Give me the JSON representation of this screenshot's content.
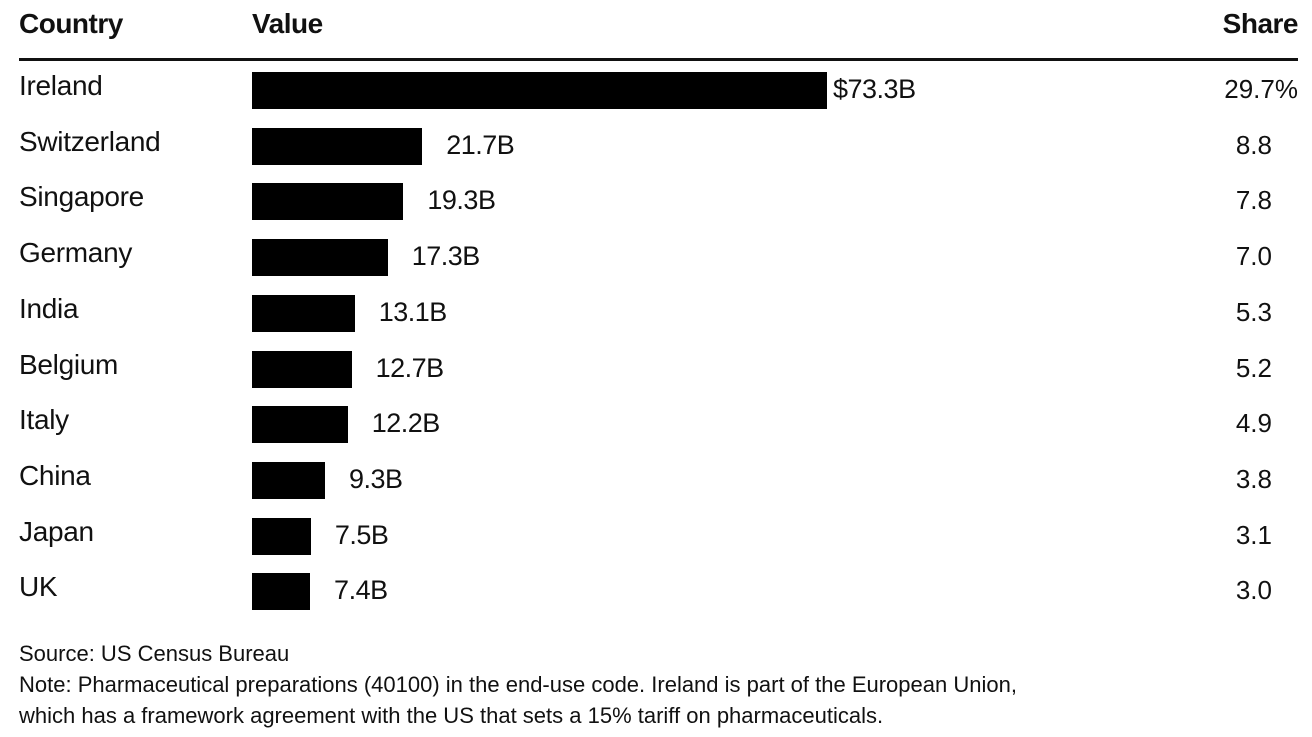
{
  "chart_data": {
    "type": "bar",
    "orientation": "horizontal",
    "columns": {
      "country": "Country",
      "value": "Value",
      "share": "Share"
    },
    "categories": [
      "Ireland",
      "Switzerland",
      "Singapore",
      "Germany",
      "India",
      "Belgium",
      "Italy",
      "China",
      "Japan",
      "UK"
    ],
    "values": [
      73.3,
      21.7,
      19.3,
      17.3,
      13.1,
      12.7,
      12.2,
      9.3,
      7.5,
      7.4
    ],
    "value_labels": [
      "$73.3B",
      "21.7B",
      "19.3B",
      "17.3B",
      "13.1B",
      "12.7B",
      "12.2B",
      "9.3B",
      "7.5B",
      "7.4B"
    ],
    "shares": [
      "29.7%",
      "8.8",
      "7.8",
      "7.0",
      "5.3",
      "5.2",
      "4.9",
      "3.8",
      "3.1",
      "3.0"
    ],
    "bar_color": "#000000",
    "grid": false,
    "legend": "none"
  },
  "footer": {
    "source": "Source: US Census Bureau",
    "note_line1": "Note: Pharmaceutical preparations (40100) in the end-use code. Ireland is part of the European Union,",
    "note_line2": "which has a framework agreement with the US that sets a 15% tariff on pharmaceuticals."
  }
}
